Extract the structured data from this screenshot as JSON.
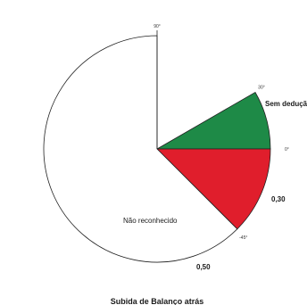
{
  "chart_data": {
    "type": "pie",
    "title": "Subida de Balanço atrás",
    "slices": [
      {
        "label": "Sem dedução",
        "start_deg": 0,
        "end_deg": 30,
        "value_label": "",
        "color": "#1e8a47"
      },
      {
        "label": "",
        "start_deg": -45,
        "end_deg": 0,
        "value_label": "0,30",
        "color": "#e01e2c"
      },
      {
        "label": "Não reconhecido",
        "start_deg": 90,
        "end_deg": 315,
        "value_label": "0,50",
        "color": "#ffffff"
      }
    ],
    "angle_ticks": [
      "90°",
      "30°",
      "0°",
      "-45°"
    ]
  }
}
